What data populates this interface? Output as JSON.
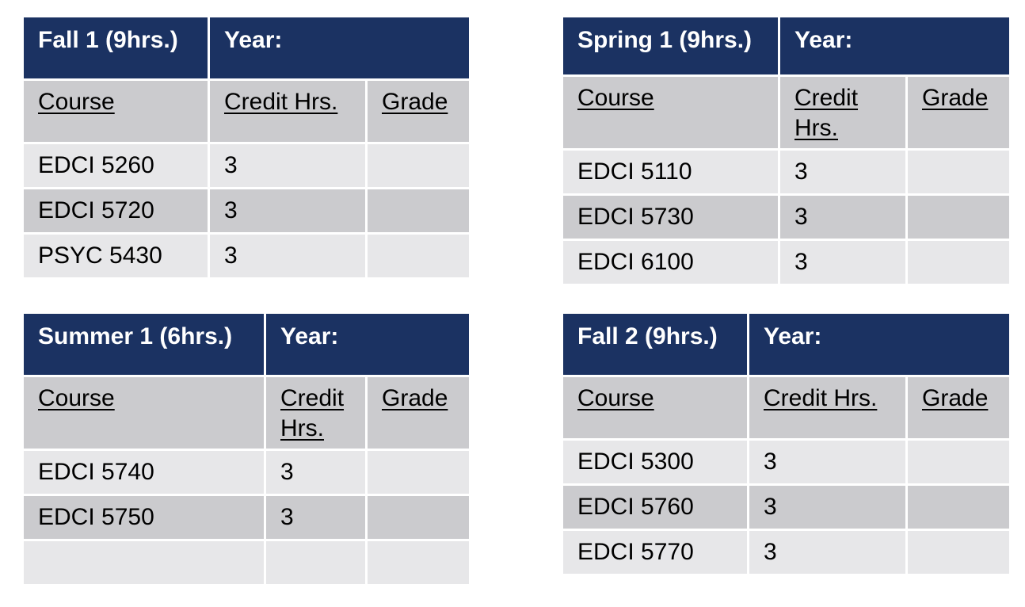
{
  "terms": [
    {
      "title": "Fall 1 (9hrs.)",
      "year_label": "Year:",
      "columns": [
        "Course",
        "Credit Hrs.",
        "Grade"
      ],
      "rows": [
        {
          "course": "EDCI 5260",
          "credit": "3",
          "grade": ""
        },
        {
          "course": "EDCI 5720",
          "credit": "3",
          "grade": ""
        },
        {
          "course": "PSYC 5430",
          "credit": "3",
          "grade": ""
        }
      ]
    },
    {
      "title": "Spring 1 (9hrs.)",
      "year_label": "Year:",
      "columns": [
        "Course",
        "Credit Hrs.",
        "Grade"
      ],
      "rows": [
        {
          "course": "EDCI 5110",
          "credit": "3",
          "grade": ""
        },
        {
          "course": "EDCI 5730",
          "credit": "3",
          "grade": ""
        },
        {
          "course": "EDCI 6100",
          "credit": "3",
          "grade": ""
        }
      ]
    },
    {
      "title": "Summer 1 (6hrs.)",
      "year_label": "Year:",
      "columns": [
        "Course",
        "Credit Hrs.",
        "Grade"
      ],
      "rows": [
        {
          "course": "EDCI 5740",
          "credit": "3",
          "grade": ""
        },
        {
          "course": "EDCI 5750",
          "credit": "3",
          "grade": ""
        },
        {
          "course": "",
          "credit": "",
          "grade": ""
        }
      ]
    },
    {
      "title": "Fall 2 (9hrs.)",
      "year_label": "Year:",
      "columns": [
        "Course",
        "Credit Hrs.",
        "Grade"
      ],
      "rows": [
        {
          "course": "EDCI 5300",
          "credit": "3",
          "grade": ""
        },
        {
          "course": "EDCI 5760",
          "credit": "3",
          "grade": ""
        },
        {
          "course": "EDCI 5770",
          "credit": "3",
          "grade": ""
        }
      ]
    }
  ],
  "colors": {
    "header_bg": "#1b3262",
    "header_text": "#ffffff",
    "row_light": "#e7e7e9",
    "row_dark": "#cbcbce"
  }
}
